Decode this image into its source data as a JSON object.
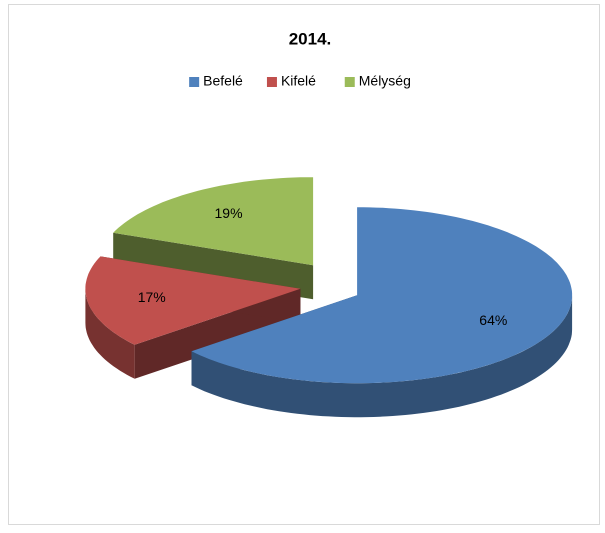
{
  "chart_data": {
    "type": "pie",
    "title": "2014.",
    "categories": [
      "Befelé",
      "Kifelé",
      "Mélység"
    ],
    "values": [
      64,
      17,
      19
    ],
    "value_labels": [
      "64%",
      "17%",
      "19%"
    ],
    "colors": [
      "#4f81bd",
      "#c0504d",
      "#9bbb59"
    ],
    "legend": "top",
    "exploded": true,
    "three_d": true
  }
}
